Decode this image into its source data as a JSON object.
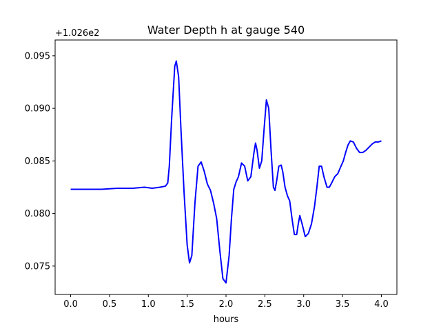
{
  "chart_data": {
    "type": "line",
    "title": "Water Depth h at gauge 540",
    "xlabel": "hours",
    "ylabel": "",
    "offset_label": "+1.026e2",
    "offset_value": 102.6,
    "xlim": [
      -0.2,
      4.2
    ],
    "ylim": [
      0.0723,
      0.0965
    ],
    "grid": false,
    "colors": {
      "line": "#0000ff",
      "axes": "#000000",
      "background": "#ffffff"
    },
    "x_ticks": [
      {
        "value": 0.0,
        "label": "0.0"
      },
      {
        "value": 0.5,
        "label": "0.5"
      },
      {
        "value": 1.0,
        "label": "1.0"
      },
      {
        "value": 1.5,
        "label": "1.5"
      },
      {
        "value": 2.0,
        "label": "2.0"
      },
      {
        "value": 2.5,
        "label": "2.5"
      },
      {
        "value": 3.0,
        "label": "3.0"
      },
      {
        "value": 3.5,
        "label": "3.5"
      },
      {
        "value": 4.0,
        "label": "4.0"
      }
    ],
    "y_ticks": [
      {
        "value": 0.075,
        "label": "0.075"
      },
      {
        "value": 0.08,
        "label": "0.080"
      },
      {
        "value": 0.085,
        "label": "0.085"
      },
      {
        "value": 0.09,
        "label": "0.090"
      },
      {
        "value": 0.095,
        "label": "0.095"
      }
    ],
    "series": [
      {
        "x": [
          0.0,
          0.2,
          0.4,
          0.6,
          0.8,
          0.95,
          1.05,
          1.15,
          1.22,
          1.25,
          1.27,
          1.3,
          1.34,
          1.36,
          1.39,
          1.42,
          1.46,
          1.5,
          1.53,
          1.56,
          1.6,
          1.64,
          1.68,
          1.72,
          1.76,
          1.8,
          1.84,
          1.88,
          1.92,
          1.96,
          2.0,
          2.04,
          2.07,
          2.1,
          2.13,
          2.16,
          2.2,
          2.24,
          2.28,
          2.32,
          2.36,
          2.38,
          2.4,
          2.43,
          2.46,
          2.49,
          2.52,
          2.55,
          2.58,
          2.61,
          2.63,
          2.65,
          2.68,
          2.71,
          2.73,
          2.76,
          2.79,
          2.82,
          2.85,
          2.88,
          2.91,
          2.93,
          2.95,
          2.98,
          3.02,
          3.06,
          3.1,
          3.14,
          3.17,
          3.2,
          3.23,
          3.26,
          3.3,
          3.33,
          3.36,
          3.4,
          3.44,
          3.48,
          3.51,
          3.54,
          3.57,
          3.6,
          3.64,
          3.68,
          3.72,
          3.76,
          3.8,
          3.84,
          3.88,
          3.92,
          3.96,
          4.0
        ],
        "y": [
          0.0823,
          0.0823,
          0.0823,
          0.0824,
          0.0824,
          0.0825,
          0.0824,
          0.0825,
          0.0826,
          0.0829,
          0.0845,
          0.089,
          0.094,
          0.0945,
          0.093,
          0.088,
          0.082,
          0.077,
          0.0753,
          0.076,
          0.081,
          0.0845,
          0.0849,
          0.084,
          0.0828,
          0.0822,
          0.081,
          0.0795,
          0.0765,
          0.0738,
          0.0734,
          0.076,
          0.0795,
          0.0823,
          0.083,
          0.0835,
          0.0848,
          0.0845,
          0.0831,
          0.0835,
          0.0858,
          0.0867,
          0.086,
          0.0843,
          0.085,
          0.088,
          0.0908,
          0.09,
          0.086,
          0.0825,
          0.0822,
          0.083,
          0.0845,
          0.0846,
          0.084,
          0.0825,
          0.0817,
          0.0812,
          0.0795,
          0.078,
          0.078,
          0.079,
          0.0798,
          0.079,
          0.0778,
          0.0781,
          0.079,
          0.0807,
          0.0825,
          0.0845,
          0.0845,
          0.0835,
          0.0825,
          0.0825,
          0.0829,
          0.0835,
          0.0838,
          0.0845,
          0.085,
          0.0858,
          0.0865,
          0.0869,
          0.0868,
          0.0862,
          0.0858,
          0.0858,
          0.086,
          0.0863,
          0.0866,
          0.0868,
          0.0868,
          0.0869
        ]
      }
    ]
  }
}
